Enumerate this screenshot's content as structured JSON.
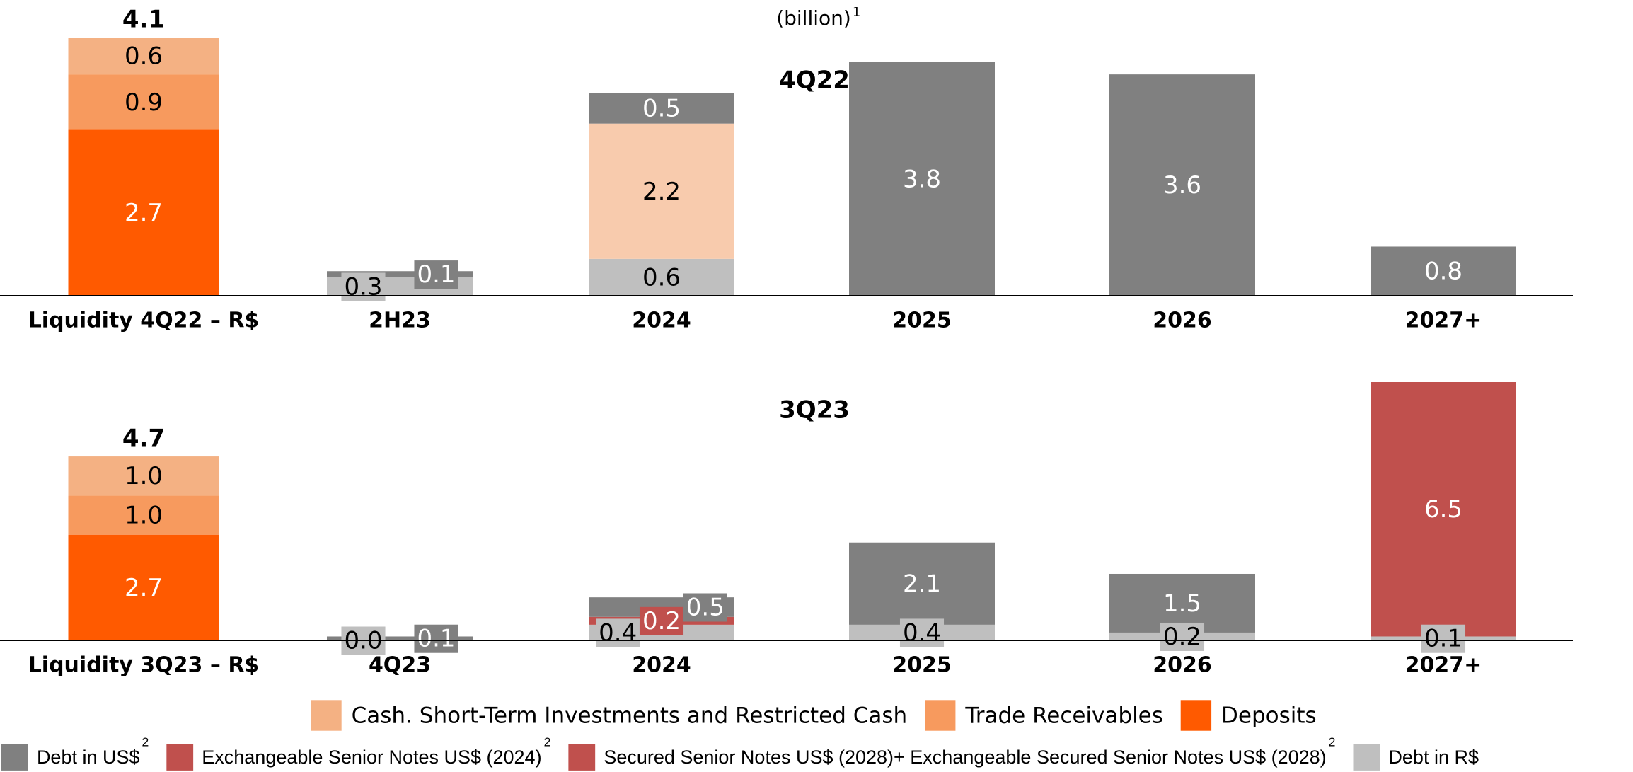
{
  "subtitle": "(billion)",
  "subtitle_note": "1",
  "legend": [
    {
      "name": "Cash. Short-Term Investments and Restricted Cash",
      "color": "#f4b183"
    },
    {
      "name": "Trade Receivables",
      "color": "#f79a5e"
    },
    {
      "name": "Deposits",
      "color": "#ff5a00"
    },
    {
      "name": "Debt in US$",
      "color": "#808080",
      "note": "2"
    },
    {
      "name": "Exchangeable Senior Notes US$ (2024)",
      "color": "#c0504d",
      "note": "2"
    },
    {
      "name": "Secured Senior Notes US$ (2028)+ Exchangeable Secured Senior Notes US$ (2028)",
      "color": "#c0504d",
      "note": "2"
    },
    {
      "name": "Debt in R$",
      "color": "#bfbfbf"
    }
  ],
  "chart_data": [
    {
      "type": "stacked_bar",
      "title": "4Q22",
      "categories": [
        "Liquidity 4Q22 – R$",
        "2H23",
        "2024",
        "2025",
        "2026",
        "2027+"
      ],
      "series": [
        {
          "legend": 2,
          "values": [
            2.7,
            null,
            null,
            null,
            null,
            null
          ]
        },
        {
          "legend": 1,
          "values": [
            0.9,
            null,
            null,
            null,
            null,
            null
          ]
        },
        {
          "legend": 0,
          "values": [
            0.6,
            null,
            null,
            null,
            null,
            null
          ]
        },
        {
          "legend": 6,
          "values": [
            null,
            0.3,
            0.6,
            null,
            null,
            null
          ]
        },
        {
          "color": "#f8cbad",
          "values": [
            null,
            null,
            2.2,
            null,
            null,
            null
          ]
        },
        {
          "legend": 3,
          "values": [
            null,
            0.1,
            0.5,
            3.8,
            3.6,
            0.8
          ]
        }
      ],
      "totals": [
        4.1,
        null,
        null,
        null,
        null,
        null
      ]
    },
    {
      "type": "stacked_bar",
      "title": "3Q23",
      "categories": [
        "Liquidity 3Q23 – R$",
        "4Q23",
        "2024",
        "2025",
        "2026",
        "2027+"
      ],
      "series": [
        {
          "legend": 2,
          "values": [
            2.7,
            null,
            null,
            null,
            null,
            null
          ]
        },
        {
          "legend": 1,
          "values": [
            1.0,
            null,
            null,
            null,
            null,
            null
          ],
          "value_labels": [
            "1.0",
            null,
            null,
            null,
            null,
            null
          ]
        },
        {
          "legend": 0,
          "values": [
            1.0,
            null,
            null,
            null,
            null,
            null
          ],
          "value_labels": [
            "1.0",
            null,
            null,
            null,
            null,
            null
          ]
        },
        {
          "legend": 6,
          "values": [
            null,
            0.0,
            0.4,
            0.4,
            0.2,
            0.1
          ],
          "value_labels": [
            null,
            "0.0",
            null,
            null,
            null,
            null
          ]
        },
        {
          "legend": 4,
          "values": [
            null,
            null,
            0.2,
            null,
            null,
            null
          ]
        },
        {
          "legend": 5,
          "values": [
            null,
            null,
            null,
            null,
            null,
            6.5
          ]
        },
        {
          "legend": 3,
          "values": [
            null,
            0.1,
            0.5,
            2.1,
            1.5,
            null
          ]
        }
      ],
      "totals": [
        4.7,
        null,
        null,
        null,
        null,
        null
      ]
    }
  ]
}
